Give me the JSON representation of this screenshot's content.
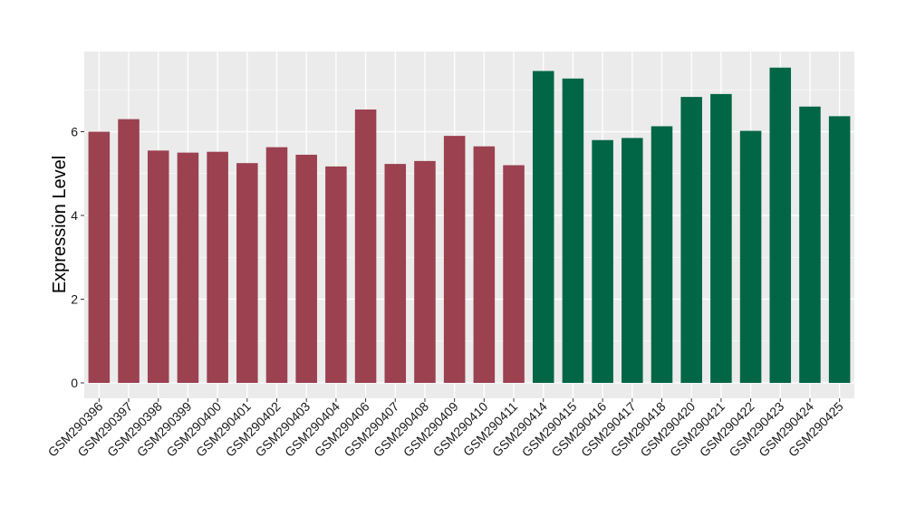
{
  "chart_data": {
    "type": "bar",
    "title": "",
    "xlabel": "",
    "ylabel": "Expression Level",
    "ylim": [
      0,
      7.8
    ],
    "yticks": [
      0,
      2,
      4,
      6
    ],
    "grid": true,
    "colors": {
      "group1": "#9b4150",
      "group2": "#006646",
      "panel": "#ebebeb",
      "grid": "#ffffff"
    },
    "categories": [
      "GSM290396",
      "GSM290397",
      "GSM290398",
      "GSM290399",
      "GSM290400",
      "GSM290401",
      "GSM290402",
      "GSM290403",
      "GSM290404",
      "GSM290406",
      "GSM290407",
      "GSM290408",
      "GSM290409",
      "GSM290410",
      "GSM290411",
      "GSM290414",
      "GSM290415",
      "GSM290416",
      "GSM290417",
      "GSM290418",
      "GSM290420",
      "GSM290421",
      "GSM290422",
      "GSM290423",
      "GSM290424",
      "GSM290425"
    ],
    "values": [
      6.0,
      6.3,
      5.55,
      5.5,
      5.52,
      5.25,
      5.63,
      5.45,
      5.17,
      6.53,
      5.23,
      5.3,
      5.9,
      5.65,
      5.2,
      7.45,
      7.27,
      5.8,
      5.85,
      6.13,
      6.83,
      6.9,
      6.02,
      7.53,
      6.6,
      6.37
    ],
    "groups": [
      1,
      1,
      1,
      1,
      1,
      1,
      1,
      1,
      1,
      1,
      1,
      1,
      1,
      1,
      1,
      2,
      2,
      2,
      2,
      2,
      2,
      2,
      2,
      2,
      2,
      2
    ]
  }
}
